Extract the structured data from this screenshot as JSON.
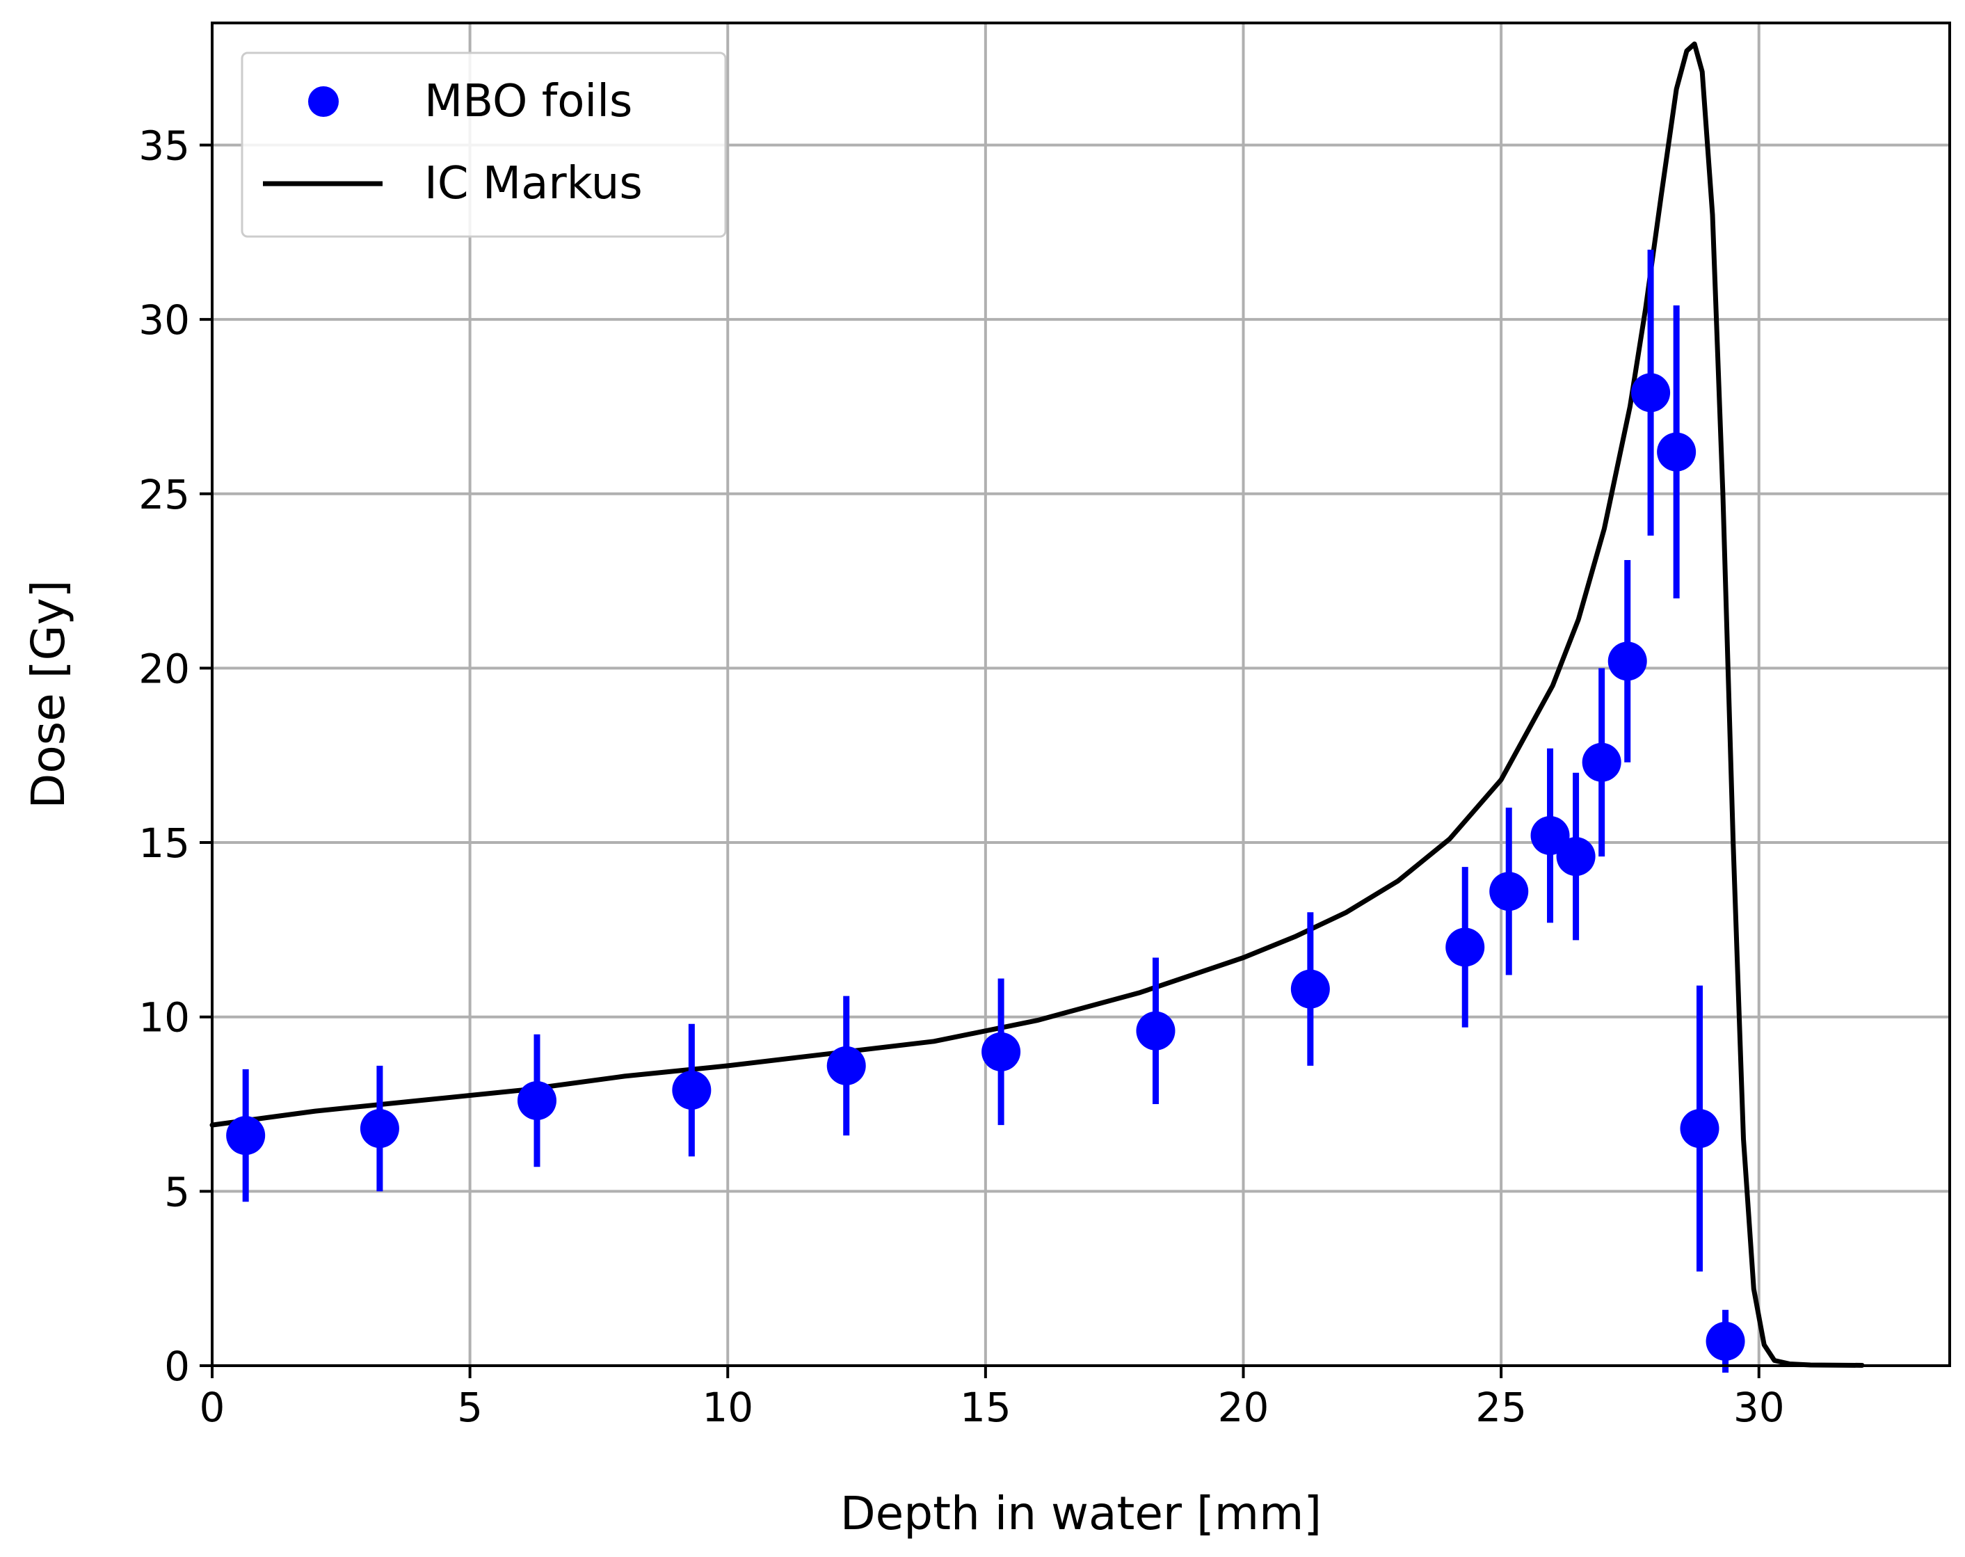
{
  "chart_data": {
    "type": "scatter",
    "title": "",
    "xlabel": "Depth in water [mm]",
    "ylabel": "Dose [Gy]",
    "xlim": [
      0,
      33.7
    ],
    "ylim": [
      0,
      38.5
    ],
    "xticks": [
      "0",
      "5",
      "10",
      "15",
      "20",
      "25",
      "30"
    ],
    "yticks": [
      "0",
      "5",
      "10",
      "15",
      "20",
      "25",
      "30",
      "35"
    ],
    "grid": true,
    "legend_position": "top-left",
    "colors": {
      "foils": "#0000ff",
      "markus": "#000000",
      "grid": "#b0b0b0"
    },
    "legend": [
      {
        "label": "MBO foils",
        "style": "marker"
      },
      {
        "label": "IC Markus",
        "style": "line"
      }
    ],
    "series": [
      {
        "name": "MBO foils",
        "kind": "errorbar",
        "x": [
          0.65,
          3.25,
          6.3,
          9.3,
          12.3,
          15.3,
          18.3,
          21.3,
          24.3,
          25.15,
          25.95,
          26.45,
          26.95,
          27.45,
          27.9,
          28.4,
          28.85,
          29.35
        ],
        "y": [
          6.6,
          6.8,
          7.6,
          7.9,
          8.6,
          9.0,
          9.6,
          10.8,
          12.0,
          13.6,
          15.2,
          14.6,
          17.3,
          20.2,
          27.9,
          26.2,
          6.8,
          0.7
        ],
        "err": [
          1.9,
          1.8,
          1.9,
          1.9,
          2.0,
          2.1,
          2.1,
          2.2,
          2.3,
          2.4,
          2.5,
          2.4,
          2.7,
          2.9,
          4.1,
          4.2,
          4.1,
          0.9
        ]
      },
      {
        "name": "IC Markus",
        "kind": "line",
        "x": [
          0,
          2,
          4,
          6,
          8,
          10,
          12,
          14,
          16,
          18,
          20,
          21,
          22,
          23,
          24,
          25,
          26,
          26.5,
          27,
          27.5,
          27.8,
          28.1,
          28.4,
          28.6,
          28.75,
          28.9,
          29.1,
          29.3,
          29.5,
          29.7,
          29.9,
          30.1,
          30.3,
          30.6,
          31,
          32
        ],
        "y": [
          6.9,
          7.3,
          7.6,
          7.9,
          8.3,
          8.6,
          8.95,
          9.3,
          9.9,
          10.7,
          11.7,
          12.3,
          13.0,
          13.9,
          15.1,
          16.8,
          19.5,
          21.4,
          24.0,
          27.5,
          30.3,
          33.5,
          36.6,
          37.7,
          37.9,
          37.1,
          33.0,
          25.0,
          15.0,
          6.5,
          2.2,
          0.6,
          0.15,
          0.05,
          0.02,
          0.01
        ]
      }
    ]
  }
}
